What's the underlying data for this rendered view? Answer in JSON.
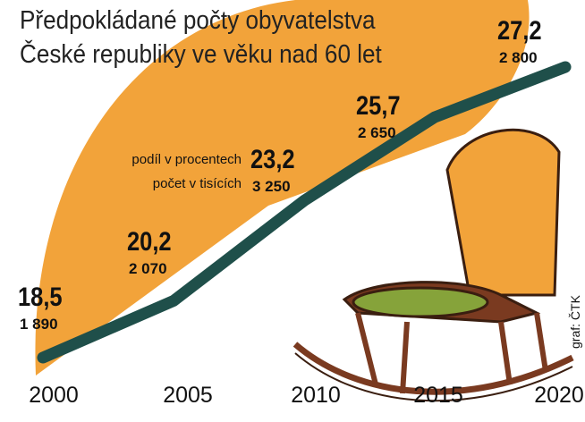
{
  "chart_data": {
    "type": "line",
    "title": "Předpokládané počty obyvatelstva České republiky ve věku nad 60 let",
    "categories": [
      "2000",
      "2005",
      "2010",
      "2015",
      "2020"
    ],
    "series": [
      {
        "name": "podíl v procentech",
        "color": "#1f4f4a",
        "values": [
          18.5,
          20.2,
          23.2,
          25.7,
          27.2
        ],
        "value_labels": [
          "18,5",
          "20,2",
          "23,2",
          "25,7",
          "27,2"
        ]
      },
      {
        "name": "počet v tisících",
        "values": [
          1890,
          2070,
          3250,
          2650,
          2800
        ],
        "value_labels": [
          "1 890",
          "2 070",
          "3 250",
          "2 650",
          "2 800"
        ]
      }
    ]
  },
  "credit": "graf: ČTK"
}
